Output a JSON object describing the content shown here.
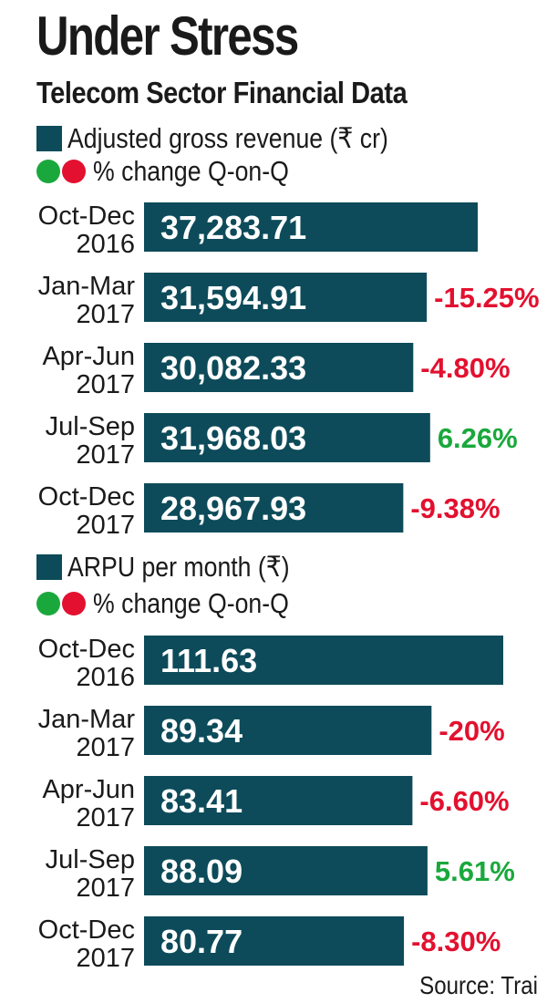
{
  "title": "Under Stress",
  "subtitle": "Telecom Sector Financial Data",
  "source": "Source: Trai",
  "colors": {
    "bar": "#0d4b5a",
    "positive": "#1aa83c",
    "negative": "#e3102f"
  },
  "chart_data": [
    {
      "type": "bar",
      "orientation": "horizontal",
      "legend": {
        "series_label": "Adjusted gross revenue (₹ cr)",
        "change_label": "% change Q-on-Q"
      },
      "categories": [
        [
          "Oct-Dec",
          "2016"
        ],
        [
          "Jan-Mar",
          "2017"
        ],
        [
          "Apr-Jun",
          "2017"
        ],
        [
          "Jul-Sep",
          "2017"
        ],
        [
          "Oct-Dec",
          "2017"
        ]
      ],
      "values": [
        37283.71,
        31594.91,
        30082.33,
        31968.03,
        28967.93
      ],
      "value_labels": [
        "37,283.71",
        "31,594.91",
        "30,082.33",
        "31,968.03",
        "28,967.93"
      ],
      "changes": [
        null,
        "-15.25%",
        "-4.80%",
        "6.26%",
        "-9.38%"
      ],
      "change_values": [
        null,
        -15.25,
        -4.8,
        6.26,
        -9.38
      ]
    },
    {
      "type": "bar",
      "orientation": "horizontal",
      "legend": {
        "series_label": "ARPU per month (₹)",
        "change_label": "% change Q-on-Q"
      },
      "categories": [
        [
          "Oct-Dec",
          "2016"
        ],
        [
          "Jan-Mar",
          "2017"
        ],
        [
          "Apr-Jun",
          "2017"
        ],
        [
          "Jul-Sep",
          "2017"
        ],
        [
          "Oct-Dec",
          "2017"
        ]
      ],
      "values": [
        111.63,
        89.34,
        83.41,
        88.09,
        80.77
      ],
      "value_labels": [
        "111.63",
        "89.34",
        "83.41",
        "88.09",
        "80.77"
      ],
      "changes": [
        null,
        "-20%",
        "-6.60%",
        "5.61%",
        "-8.30%"
      ],
      "change_values": [
        null,
        -20,
        -6.6,
        5.61,
        -8.3
      ]
    }
  ]
}
